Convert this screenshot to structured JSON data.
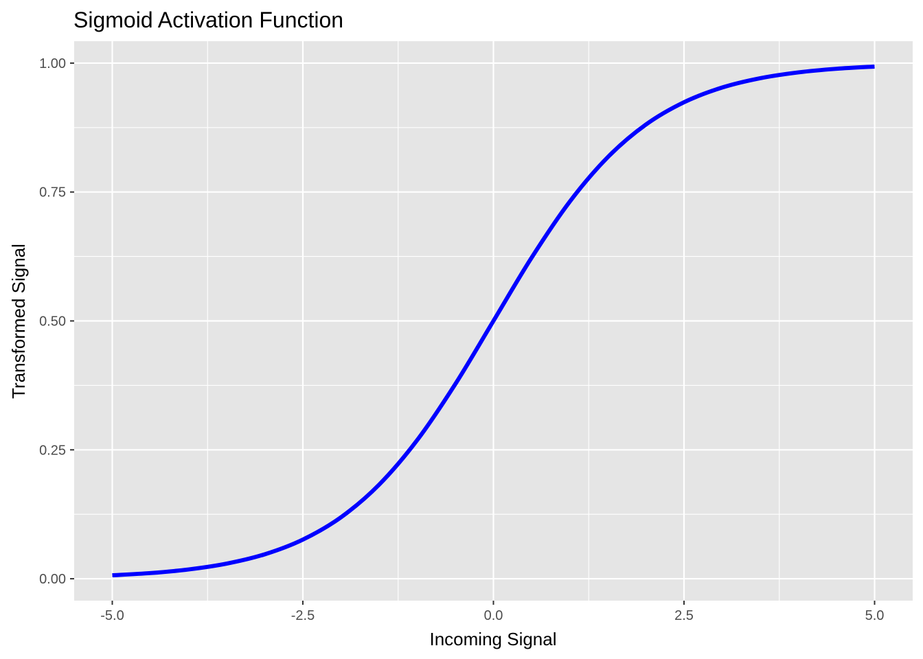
{
  "chart_data": {
    "type": "line",
    "title": "Sigmoid Activation Function",
    "xlabel": "Incoming Signal",
    "ylabel": "Transformed Signal",
    "xlim": [
      -5.5,
      5.5
    ],
    "ylim": [
      -0.0425,
      1.0425
    ],
    "x_ticks": [
      -5.0,
      -2.5,
      0.0,
      2.5,
      5.0
    ],
    "x_tick_labels": [
      "-5.0",
      "-2.5",
      "0.0",
      "2.5",
      "5.0"
    ],
    "y_ticks": [
      0.0,
      0.25,
      0.5,
      0.75,
      1.0
    ],
    "y_tick_labels": [
      "0.00",
      "0.25",
      "0.50",
      "0.75",
      "1.00"
    ],
    "grid": true,
    "panel_color": "#e5e5e5",
    "line_color": "#0000ff",
    "series": [
      {
        "x": [
          -5.0,
          -4.5,
          -4.0,
          -3.5,
          -3.0,
          -2.5,
          -2.0,
          -1.5,
          -1.0,
          -0.5,
          0.0,
          0.5,
          1.0,
          1.5,
          2.0,
          2.5,
          3.0,
          3.5,
          4.0,
          4.5,
          5.0
        ],
        "values": [
          0.0067,
          0.011,
          0.018,
          0.0293,
          0.0474,
          0.0759,
          0.1192,
          0.1824,
          0.2689,
          0.3775,
          0.5,
          0.6225,
          0.7311,
          0.8176,
          0.8808,
          0.9241,
          0.9526,
          0.9707,
          0.982,
          0.989,
          0.9933
        ]
      }
    ]
  }
}
